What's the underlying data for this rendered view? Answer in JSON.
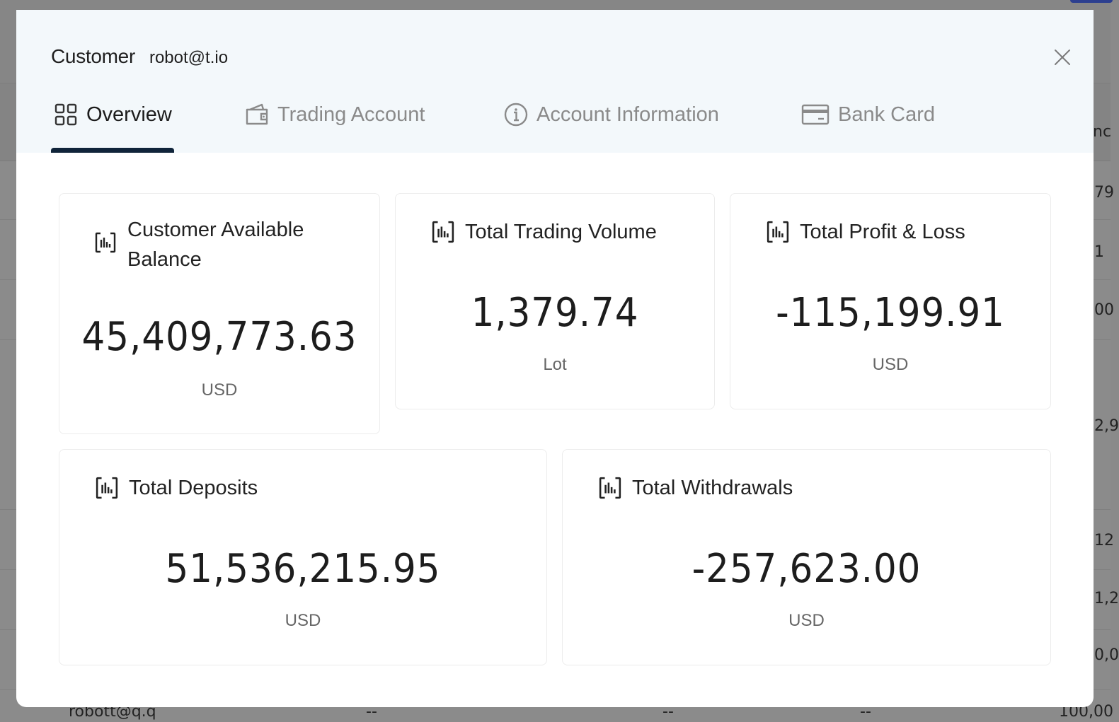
{
  "background": {
    "rows": [
      {
        "cells": [
          "79"
        ]
      },
      {
        "cells": [
          "1"
        ]
      },
      {
        "cells": [
          "00"
        ]
      },
      {
        "cells": [
          "2,9"
        ]
      },
      {
        "cells": [
          "12"
        ]
      },
      {
        "cells": [
          "1,2"
        ]
      },
      {
        "cells": [
          "0,0"
        ]
      }
    ],
    "header_fragment": "nc",
    "last_row": {
      "email": "robott@q.q",
      "col2": "--",
      "col3": "--",
      "col4": "--",
      "col5": "100,00"
    }
  },
  "modal": {
    "title": "Customer",
    "subtitle": "robot@t.io",
    "close_icon": "close-icon",
    "tabs": [
      {
        "label": "Overview",
        "icon": "grid-icon",
        "active": true
      },
      {
        "label": "Trading Account",
        "icon": "wallet-icon",
        "active": false
      },
      {
        "label": "Account Information",
        "icon": "info-icon",
        "active": false
      },
      {
        "label": "Bank Card",
        "icon": "credit-card-icon",
        "active": false
      }
    ],
    "cards": [
      {
        "title": "Customer Available Balance",
        "value": "45,409,773.63",
        "unit": "USD",
        "icon": "chart-icon"
      },
      {
        "title": "Total Trading Volume",
        "value": "1,379.74",
        "unit": "Lot",
        "icon": "chart-icon"
      },
      {
        "title": "Total Profit & Loss",
        "value": "-115,199.91",
        "unit": "USD",
        "icon": "chart-icon"
      },
      {
        "title": "Total Deposits",
        "value": "51,536,215.95",
        "unit": "USD",
        "icon": "chart-icon"
      },
      {
        "title": "Total Withdrawals",
        "value": "-257,623.00",
        "unit": "USD",
        "icon": "chart-icon"
      }
    ]
  },
  "colors": {
    "modal_header_bg": "#f3f8fb",
    "tab_underline": "#10243a",
    "overlay": "#8b8b8b"
  }
}
